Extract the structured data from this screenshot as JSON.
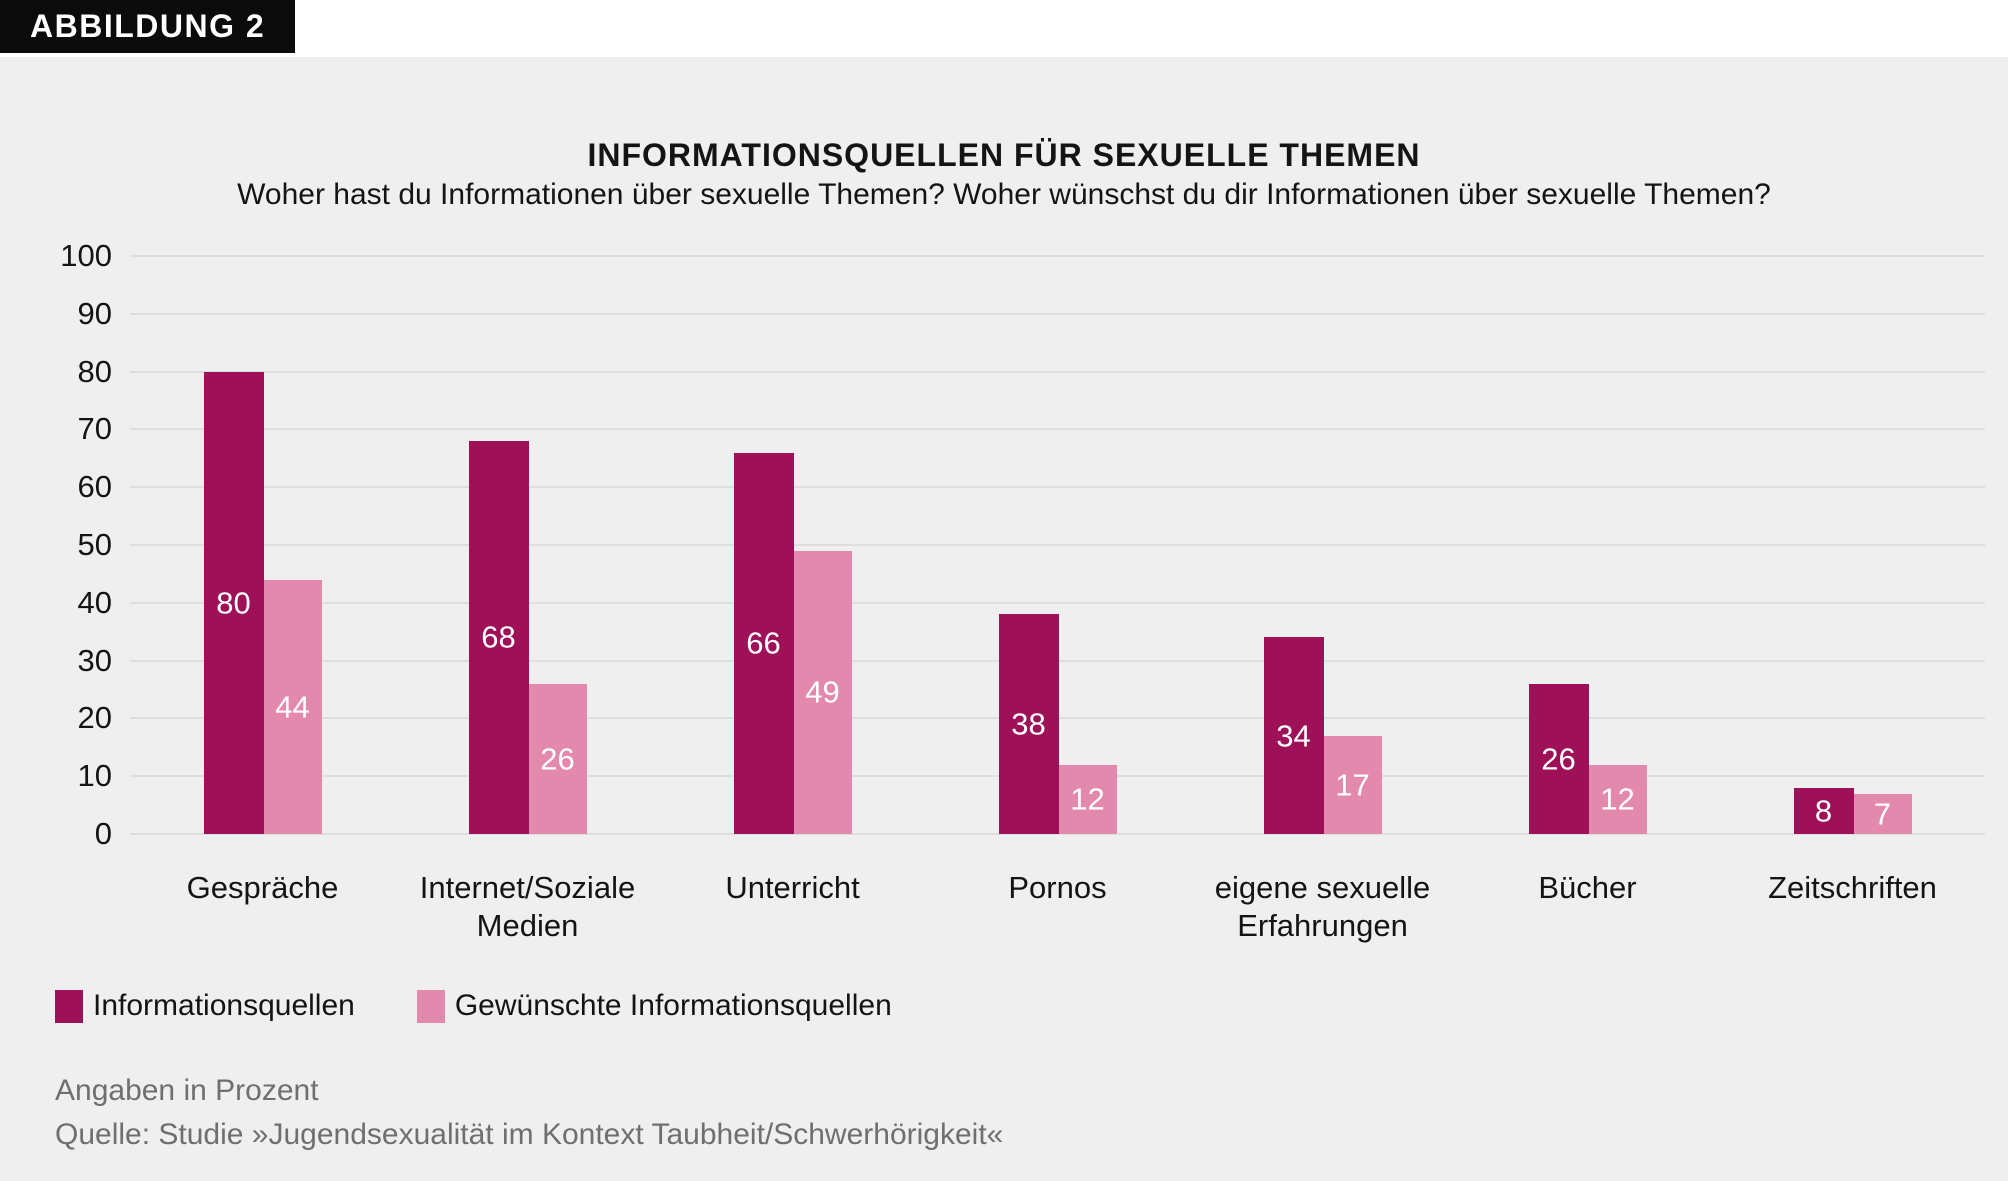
{
  "figure_tag": "ABBILDUNG 2",
  "chart_data": {
    "type": "bar",
    "title": "INFORMATIONSQUELLEN FÜR SEXUELLE THEMEN",
    "subtitle": "Woher hast du Informationen über sexuelle Themen? Woher wünschst du dir Informationen über sexuelle Themen?",
    "categories": [
      "Gespräche",
      "Internet/Soziale\nMedien",
      "Unterricht",
      "Pornos",
      "eigene sexuelle\nErfahrungen",
      "Bücher",
      "Zeitschriften"
    ],
    "series": [
      {
        "name": "Informationsquellen",
        "color": "#9e1057",
        "values": [
          80,
          68,
          66,
          38,
          34,
          26,
          8
        ]
      },
      {
        "name": "Gewünschte Informationsquellen",
        "color": "#e389ae",
        "values": [
          44,
          26,
          49,
          12,
          17,
          12,
          7
        ]
      }
    ],
    "ylim": [
      0,
      100
    ],
    "yticks": [
      0,
      10,
      20,
      30,
      40,
      50,
      60,
      70,
      80,
      90,
      100
    ],
    "grid": true,
    "legend_position": "bottom-left",
    "value_labels": "inside-white"
  },
  "footnotes": {
    "line1": "Angaben in Prozent",
    "line2": "Quelle: Studie »Jugendsexualität im Kontext Taubheit/Schwerhörigkeit«"
  },
  "colors": {
    "background": "#efefef",
    "header_strip": "#ffffff",
    "tag_background": "#0b0b0b",
    "tag_text": "#ffffff",
    "gridline": "#dedede",
    "text": "#141414",
    "footnote_text": "#6f6f6f",
    "bar_value_text": "#ffffff"
  }
}
